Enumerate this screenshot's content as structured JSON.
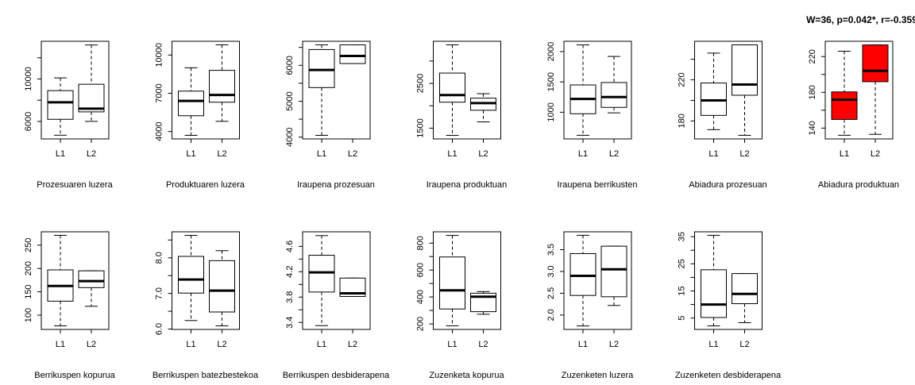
{
  "chart_data": {
    "type": "boxplot",
    "highlight_color": "#ff0000",
    "default_fill": "#ffffff",
    "panels": [
      {
        "xlabel": "Prozesuaren luzera",
        "ticks": [
          6000,
          8000,
          10000,
          12000
        ],
        "tick_labels": [
          "6000",
          "",
          "10000",
          ""
        ],
        "ylim": [
          4350,
          13550
        ],
        "categories": [
          "L1",
          "L2"
        ],
        "groups": [
          {
            "name": "L1",
            "min": 4700,
            "q1": 6200,
            "median": 7800,
            "q3": 8900,
            "max": 10100
          },
          {
            "name": "L2",
            "min": 6000,
            "q1": 6900,
            "median": 7200,
            "q3": 9500,
            "max": 13200
          }
        ]
      },
      {
        "xlabel": "Produktuaren luzera",
        "ticks": [
          4000,
          7000,
          10000
        ],
        "tick_labels": [
          "4000",
          "7000",
          "10000"
        ],
        "ylim": [
          3420,
          11080
        ],
        "categories": [
          "L1",
          "L2"
        ],
        "groups": [
          {
            "name": "L1",
            "min": 3700,
            "q1": 5240,
            "median": 6400,
            "q3": 7170,
            "max": 9000
          },
          {
            "name": "L2",
            "min": 4800,
            "q1": 6300,
            "median": 6870,
            "q3": 8800,
            "max": 10800
          }
        ]
      },
      {
        "xlabel": "Iraupena prozesuan",
        "ticks": [
          4000,
          4500,
          5000,
          5500,
          6000,
          6500
        ],
        "tick_labels": [
          "4000",
          "",
          "5000",
          "",
          "6000",
          ""
        ],
        "ylim": [
          3950,
          6670
        ],
        "categories": [
          "L1",
          "L2"
        ],
        "groups": [
          {
            "name": "L1",
            "min": 4050,
            "q1": 5380,
            "median": 5870,
            "q3": 6440,
            "max": 6570
          },
          {
            "name": "L2",
            "min": 6050,
            "q1": 6050,
            "median": 6260,
            "q3": 6570,
            "max": 6570
          }
        ]
      },
      {
        "xlabel": "Iraupena produktuan",
        "ticks": [
          1500,
          2000,
          2500,
          3000
        ],
        "tick_labels": [
          "1500",
          "",
          "2500",
          ""
        ],
        "ylim": [
          1260,
          3440
        ],
        "categories": [
          "L1",
          "L2"
        ],
        "groups": [
          {
            "name": "L1",
            "min": 1340,
            "q1": 2080,
            "median": 2240,
            "q3": 2730,
            "max": 3360
          },
          {
            "name": "L2",
            "min": 1640,
            "q1": 1900,
            "median": 2060,
            "q3": 2170,
            "max": 2270
          }
        ]
      },
      {
        "xlabel": "Iraupena berrikusten",
        "ticks": [
          1000,
          1500,
          2000
        ],
        "tick_labels": [
          "1000",
          "1500",
          "2000"
        ],
        "ylim": [
          560,
          2170
        ],
        "categories": [
          "L1",
          "L2"
        ],
        "groups": [
          {
            "name": "L1",
            "min": 620,
            "q1": 975,
            "median": 1220,
            "q3": 1450,
            "max": 2110
          },
          {
            "name": "L2",
            "min": 990,
            "q1": 1080,
            "median": 1250,
            "q3": 1490,
            "max": 1920
          }
        ]
      },
      {
        "xlabel": "Abiadura prozesuan",
        "ticks": [
          180,
          200,
          220,
          240
        ],
        "tick_labels": [
          "180",
          "",
          "220",
          ""
        ],
        "ylim": [
          162.5,
          257.5
        ],
        "categories": [
          "L1",
          "L2"
        ],
        "groups": [
          {
            "name": "L1",
            "min": 171.5,
            "q1": 185.4,
            "median": 200,
            "q3": 216.9,
            "max": 246
          },
          {
            "name": "L2",
            "min": 166,
            "q1": 205,
            "median": 215.4,
            "q3": 254,
            "max": 254
          }
        ]
      },
      {
        "xlabel": "Abiadura produktuan",
        "title": "W=36, p=0.042*, r=-0.359",
        "highlight": true,
        "ticks": [
          140,
          160,
          180,
          200,
          220
        ],
        "tick_labels": [
          "140",
          "",
          "180",
          "",
          "220"
        ],
        "ylim": [
          127.9,
          237.1
        ],
        "categories": [
          "L1",
          "L2"
        ],
        "groups": [
          {
            "name": "L1",
            "min": 132,
            "q1": 149.7,
            "median": 171.7,
            "q3": 180.5,
            "max": 226
          },
          {
            "name": "L2",
            "min": 133,
            "q1": 191.9,
            "median": 204,
            "q3": 233,
            "max": 233
          }
        ]
      },
      {
        "xlabel": "Berrikuspen kopurua",
        "ticks": [
          100,
          150,
          200,
          250
        ],
        "tick_labels": [
          "100",
          "150",
          "200",
          "250"
        ],
        "ylim": [
          69.4,
          278.6
        ],
        "categories": [
          "L1",
          "L2"
        ],
        "groups": [
          {
            "name": "L1",
            "min": 77,
            "q1": 130,
            "median": 162.5,
            "q3": 197,
            "max": 271
          },
          {
            "name": "L2",
            "min": 119,
            "q1": 159,
            "median": 173,
            "q3": 195,
            "max": 195
          }
        ]
      },
      {
        "xlabel": "Berrikuspen batezbestekoa",
        "ticks": [
          6.0,
          6.5,
          7.0,
          7.5,
          8.0,
          8.5
        ],
        "tick_labels": [
          "6.0",
          "",
          "7.0",
          "",
          "8.0",
          ""
        ],
        "ylim": [
          5.99,
          8.73
        ],
        "categories": [
          "L1",
          "L2"
        ],
        "groups": [
          {
            "name": "L1",
            "min": 6.24,
            "q1": 7.01,
            "median": 7.39,
            "q3": 8.04,
            "max": 8.63
          },
          {
            "name": "L2",
            "min": 6.09,
            "q1": 6.48,
            "median": 7.08,
            "q3": 7.92,
            "max": 8.2
          }
        ]
      },
      {
        "xlabel": "Berrikuspen desbiderapena",
        "ticks": [
          3.4,
          3.6,
          3.8,
          4.0,
          4.2,
          4.4,
          4.6
        ],
        "tick_labels": [
          "3.4",
          "",
          "3.8",
          "",
          "4.2",
          "",
          "4.6"
        ],
        "ylim": [
          3.29,
          4.83
        ],
        "categories": [
          "L1",
          "L2"
        ],
        "groups": [
          {
            "name": "L1",
            "min": 3.35,
            "q1": 3.88,
            "median": 4.19,
            "q3": 4.46,
            "max": 4.77
          },
          {
            "name": "L2",
            "min": 3.81,
            "q1": 3.81,
            "median": 3.86,
            "q3": 4.1,
            "max": 4.1
          }
        ]
      },
      {
        "xlabel": "Zuzenketa kopurua",
        "ticks": [
          200,
          300,
          400,
          500,
          600,
          700,
          800
        ],
        "tick_labels": [
          "200",
          "",
          "400",
          "",
          "600",
          "",
          "800"
        ],
        "ylim": [
          159,
          884
        ],
        "categories": [
          "L1",
          "L2"
        ],
        "groups": [
          {
            "name": "L1",
            "min": 186,
            "q1": 311,
            "median": 449,
            "q3": 697,
            "max": 857
          },
          {
            "name": "L2",
            "min": 272,
            "q1": 291,
            "median": 402,
            "q3": 428,
            "max": 440
          }
        ]
      },
      {
        "xlabel": "Zuzenketen luzera",
        "ticks": [
          2.0,
          2.5,
          3.0,
          3.5
        ],
        "tick_labels": [
          "2.0",
          "2.5",
          "3.0",
          "3.5"
        ],
        "ylim": [
          1.67,
          3.91
        ],
        "categories": [
          "L1",
          "L2"
        ],
        "groups": [
          {
            "name": "L1",
            "min": 1.75,
            "q1": 2.45,
            "median": 2.9,
            "q3": 3.41,
            "max": 3.83
          },
          {
            "name": "L2",
            "min": 2.22,
            "q1": 2.42,
            "median": 3.05,
            "q3": 3.58,
            "max": 3.58
          }
        ]
      },
      {
        "xlabel": "Zuzenketen desbiderapena",
        "ticks": [
          5,
          10,
          15,
          20,
          25,
          30,
          35
        ],
        "tick_labels": [
          "5",
          "",
          "15",
          "",
          "25",
          "",
          "35"
        ],
        "ylim": [
          0.8,
          36.8
        ],
        "categories": [
          "L1",
          "L2"
        ],
        "groups": [
          {
            "name": "L1",
            "min": 2.1,
            "q1": 5.2,
            "median": 10.0,
            "q3": 22.8,
            "max": 35.5
          },
          {
            "name": "L2",
            "min": 3.3,
            "q1": 10.3,
            "median": 13.9,
            "q3": 21.4,
            "max": 21.4
          }
        ]
      }
    ]
  }
}
